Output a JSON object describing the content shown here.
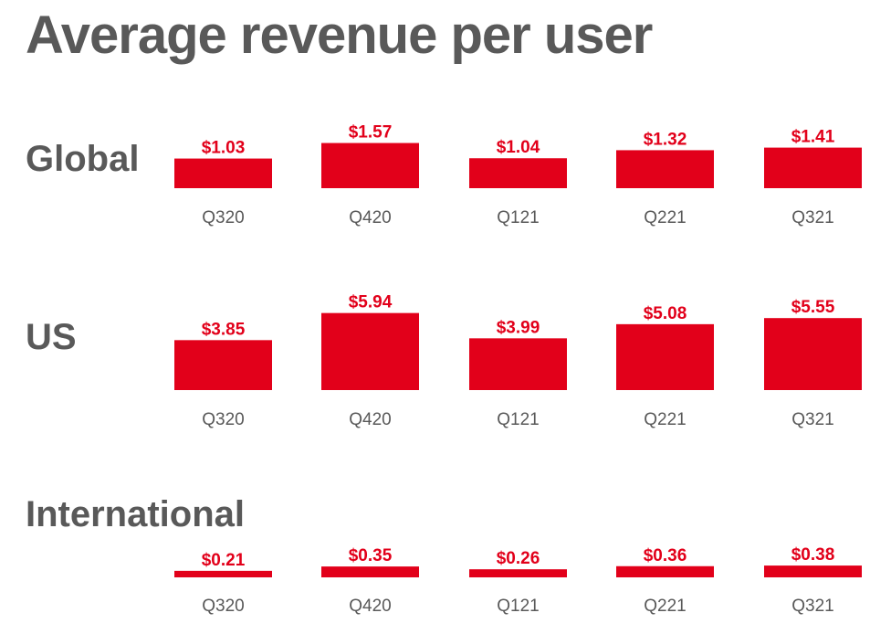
{
  "title": "Average revenue per user",
  "colors": {
    "bar": "#e2001a",
    "text": "#595959"
  },
  "chart_data": [
    {
      "type": "bar",
      "title": "Global",
      "categories": [
        "Q320",
        "Q420",
        "Q121",
        "Q221",
        "Q321"
      ],
      "values": [
        1.03,
        1.57,
        1.04,
        1.32,
        1.41
      ],
      "labels": [
        "$1.03",
        "$1.57",
        "$1.04",
        "$1.32",
        "$1.41"
      ],
      "grid": false
    },
    {
      "type": "bar",
      "title": "US",
      "categories": [
        "Q320",
        "Q420",
        "Q121",
        "Q221",
        "Q321"
      ],
      "values": [
        3.85,
        5.94,
        3.99,
        5.08,
        5.55
      ],
      "labels": [
        "$3.85",
        "$5.94",
        "$3.99",
        "$5.08",
        "$5.55"
      ],
      "grid": false
    },
    {
      "type": "bar",
      "title": "International",
      "categories": [
        "Q320",
        "Q420",
        "Q121",
        "Q221",
        "Q321"
      ],
      "values": [
        0.21,
        0.35,
        0.26,
        0.36,
        0.38
      ],
      "labels": [
        "$0.21",
        "$0.35",
        "$0.26",
        "$0.36",
        "$0.38"
      ],
      "grid": false
    }
  ]
}
